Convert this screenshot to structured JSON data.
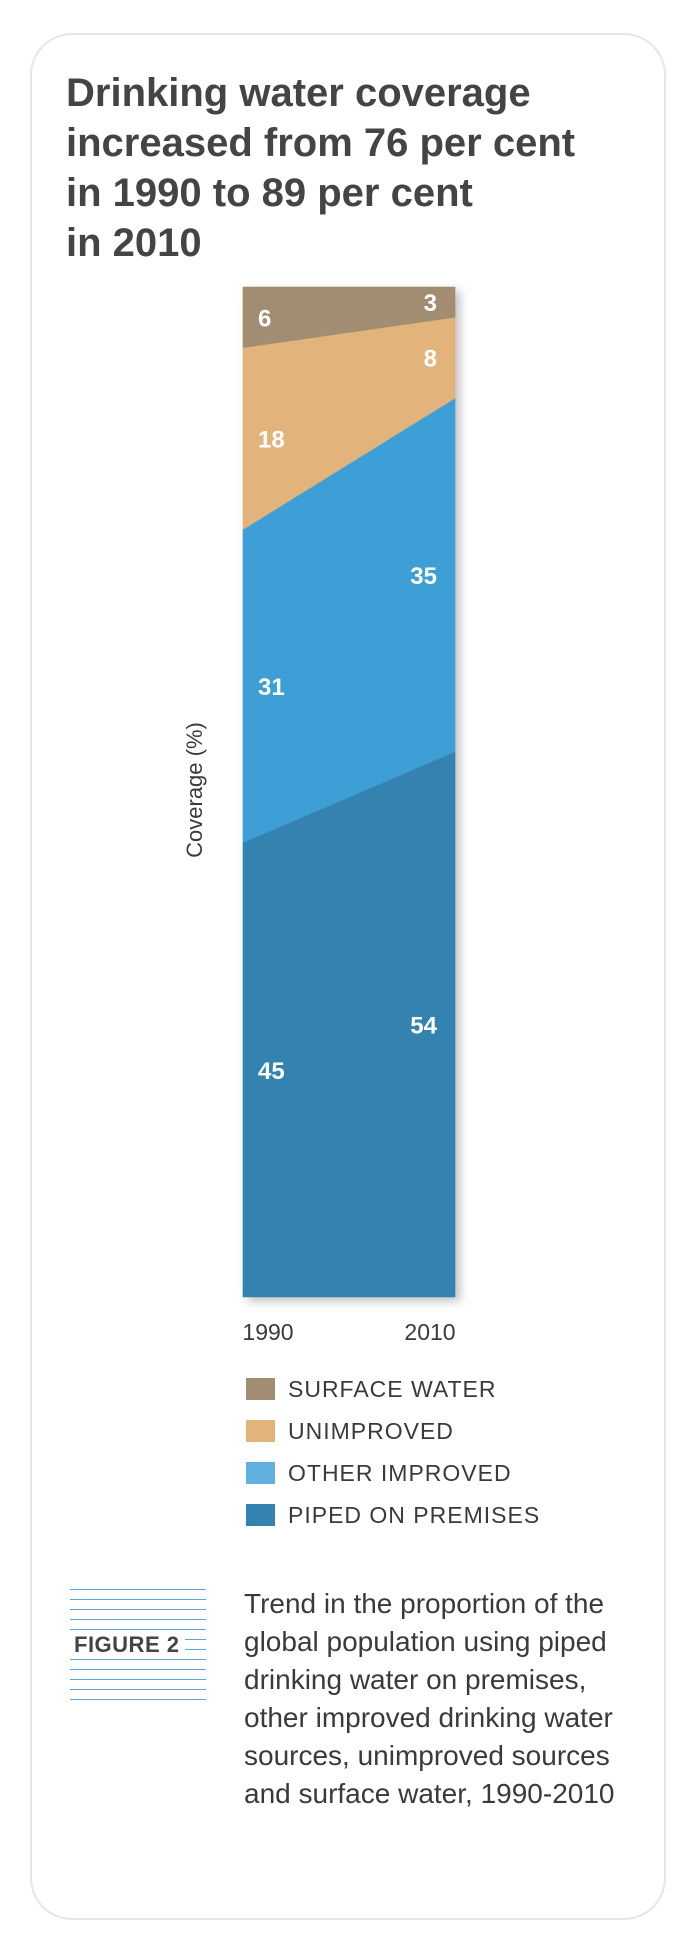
{
  "title": "Drinking water coverage\nincreased from 76 per cent\nin 1990 to 89 per cent\nin 2010",
  "figure_label": "FIGURE 2",
  "caption": "Trend in the proportion of the global population using piped drinking water on premises, other improved drinking water sources, unimproved sources and surface water, 1990-2010",
  "chart_data": {
    "type": "area",
    "x": [
      "1990",
      "2010"
    ],
    "ylabel": "Coverage (%)",
    "ylim": [
      0,
      100
    ],
    "stacking": "100% stacked, first series at bottom",
    "series": [
      {
        "name": "PIPED ON PREMISES",
        "values": [
          45,
          54
        ],
        "color": "#3482b0"
      },
      {
        "name": "OTHER IMPROVED",
        "values": [
          31,
          35
        ],
        "color": "#3e9fd6"
      },
      {
        "name": "UNIMPROVED",
        "values": [
          18,
          8
        ],
        "color": "#e2b47b"
      },
      {
        "name": "SURFACE WATER",
        "values": [
          6,
          3
        ],
        "color": "#a38d72"
      }
    ],
    "legend": [
      {
        "label": "SURFACE WATER",
        "color": "#a38d72"
      },
      {
        "label": "UNIMPROVED",
        "color": "#e2b47b"
      },
      {
        "label": "OTHER IMPROVED",
        "color": "#62b0e0"
      },
      {
        "label": "PIPED ON PREMISES",
        "color": "#3482b0"
      }
    ]
  }
}
